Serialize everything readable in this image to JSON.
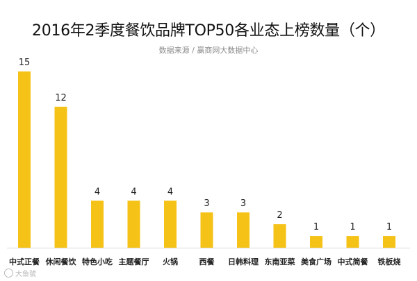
{
  "chart_data": {
    "type": "bar",
    "title": "2016年2季度餐饮品牌TOP50各业态上榜数量（个）",
    "subtitle": "数据来源 / 赢商网大数据中心",
    "categories": [
      "中式正餐",
      "休闲餐饮",
      "特色小吃",
      "主题餐厅",
      "火锅",
      "西餐",
      "日韩料理",
      "东南亚菜",
      "美食广场",
      "中式简餐",
      "铁板烧"
    ],
    "values": [
      15,
      12,
      4,
      4,
      4,
      3,
      3,
      2,
      1,
      1,
      1
    ],
    "xlabel": "",
    "ylabel": "",
    "ylim": [
      0,
      15
    ],
    "grid": false,
    "legend": "none",
    "bar_color": "#f5c217"
  },
  "watermark": "大鱼號"
}
